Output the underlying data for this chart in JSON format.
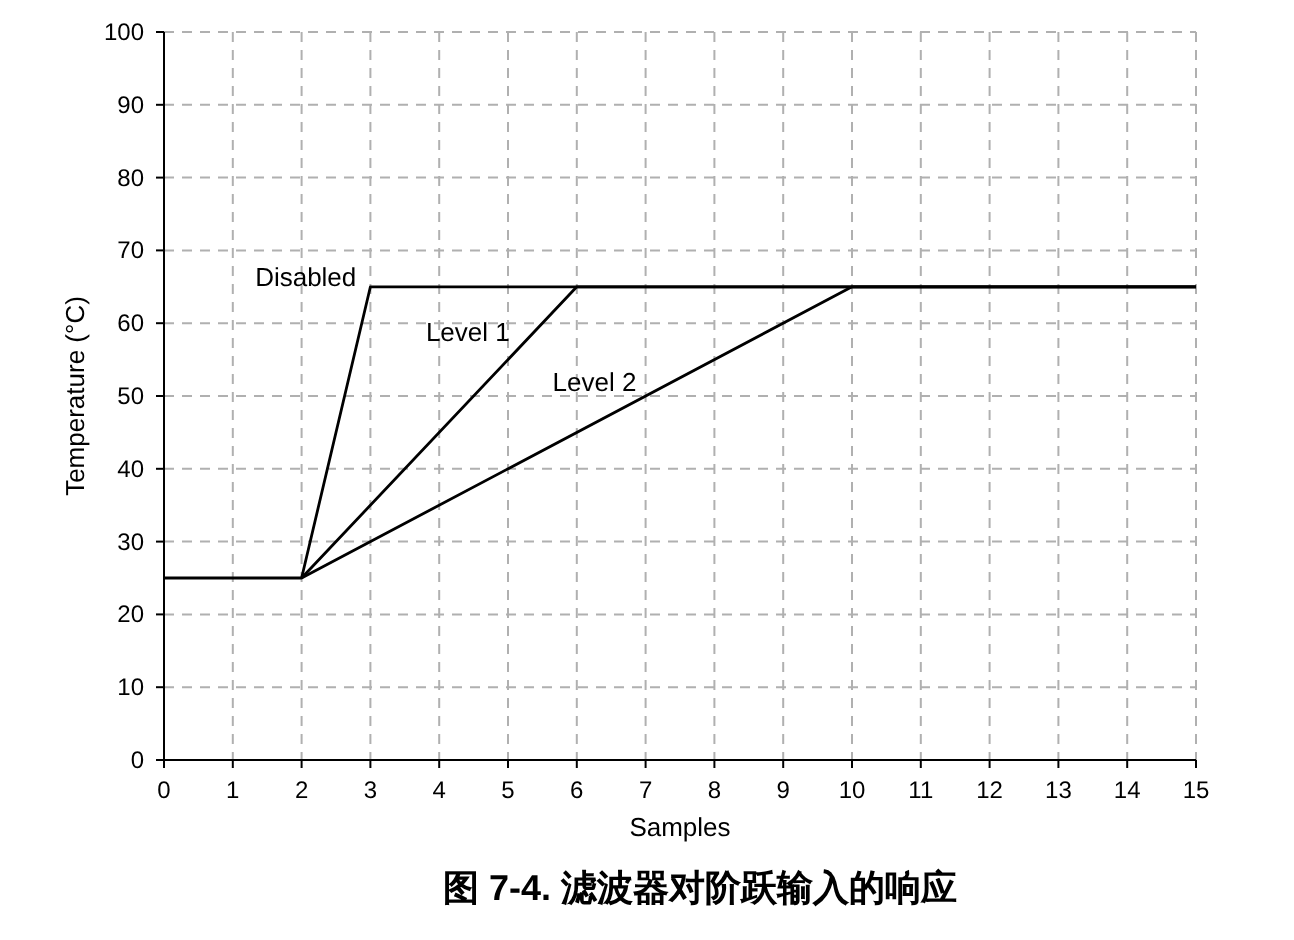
{
  "chart_data": {
    "type": "line",
    "title": "图 7-4. 滤波器对阶跃输入的响应",
    "xlabel": "Samples",
    "ylabel": "Temperature (°C)",
    "xlim": [
      0,
      15
    ],
    "xticks": [
      0,
      1,
      2,
      3,
      4,
      5,
      6,
      7,
      8,
      9,
      10,
      11,
      12,
      13,
      14,
      15
    ],
    "ylim": [
      0,
      100
    ],
    "yticks": [
      0,
      10,
      20,
      30,
      40,
      50,
      60,
      70,
      80,
      90,
      100
    ],
    "grid": true,
    "marker": "none",
    "line_style": "solid",
    "series": [
      {
        "name": "Disabled",
        "color": "#000000",
        "x": [
          0,
          2,
          3,
          15
        ],
        "values": [
          25,
          25,
          65,
          65
        ]
      },
      {
        "name": "Level 1",
        "color": "#000000",
        "x": [
          2,
          6,
          15
        ],
        "values": [
          25,
          65,
          65
        ]
      },
      {
        "name": "Level 2",
        "color": "#000000",
        "x": [
          2,
          10,
          15
        ],
        "values": [
          25,
          65,
          65
        ]
      }
    ]
  }
}
